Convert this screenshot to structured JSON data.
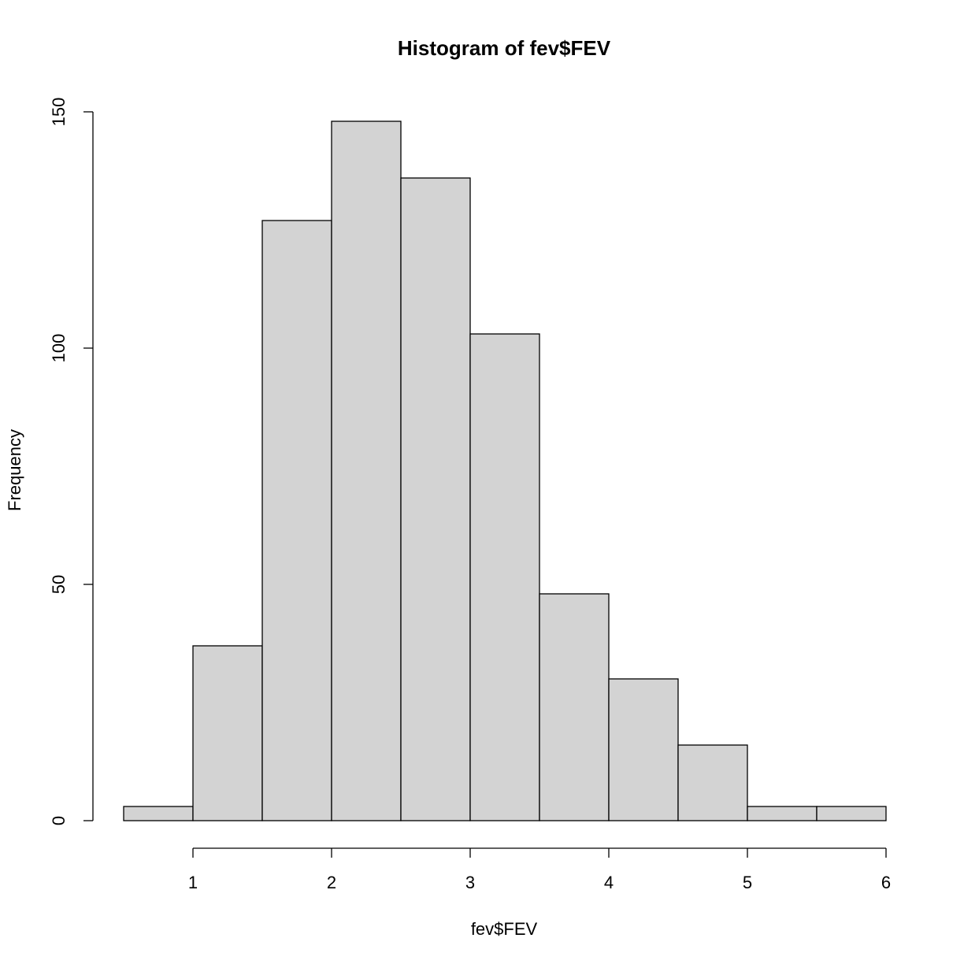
{
  "chart_data": {
    "type": "bar",
    "title": "Histogram of fev$FEV",
    "xlabel": "fev$FEV",
    "ylabel": "Frequency",
    "bins": [
      {
        "from": 0.5,
        "to": 1.0,
        "count": 3
      },
      {
        "from": 1.0,
        "to": 1.5,
        "count": 37
      },
      {
        "from": 1.5,
        "to": 2.0,
        "count": 127
      },
      {
        "from": 2.0,
        "to": 2.5,
        "count": 148
      },
      {
        "from": 2.5,
        "to": 3.0,
        "count": 136
      },
      {
        "from": 3.0,
        "to": 3.5,
        "count": 103
      },
      {
        "from": 3.5,
        "to": 4.0,
        "count": 48
      },
      {
        "from": 4.0,
        "to": 4.5,
        "count": 30
      },
      {
        "from": 4.5,
        "to": 5.0,
        "count": 16
      },
      {
        "from": 5.0,
        "to": 5.5,
        "count": 3
      },
      {
        "from": 5.5,
        "to": 6.0,
        "count": 3
      }
    ],
    "x_ticks": [
      "1",
      "2",
      "3",
      "4",
      "5",
      "6"
    ],
    "y_ticks": [
      "0",
      "50",
      "100",
      "150"
    ],
    "xlim": [
      0.5,
      6.0
    ],
    "ylim": [
      0,
      150
    ],
    "bar_fill": "#d3d3d3",
    "bar_stroke": "#000000",
    "grid": false,
    "legend": "none"
  }
}
